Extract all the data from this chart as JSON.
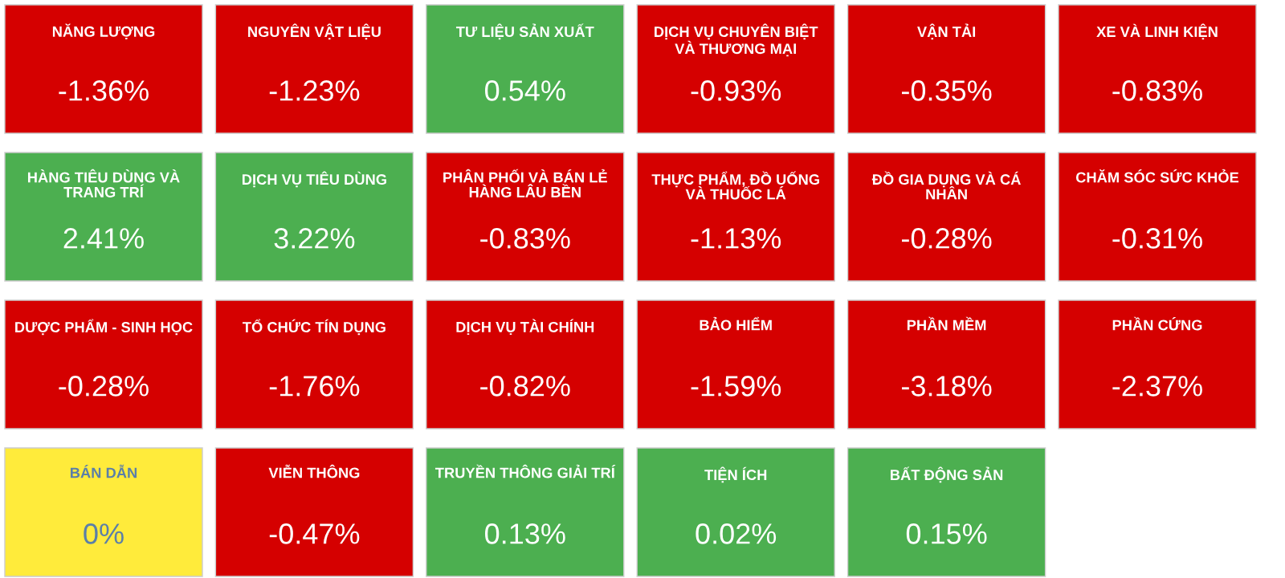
{
  "chart_data": {
    "type": "other",
    "categories": [
      "NĂNG LƯỢNG",
      "NGUYÊN VẬT LIỆU",
      "TƯ LIỆU SẢN XUẤT",
      "DỊCH VỤ CHUYÊN BIỆT VÀ THƯƠNG MẠI",
      "VẬN TẢI",
      "XE VÀ LINH KIỆN",
      "HÀNG TIÊU DÙNG VÀ TRANG TRÍ",
      "DỊCH VỤ TIÊU DÙNG",
      "PHÂN PHỐI VÀ BÁN LẺ HÀNG LÂU BỀN",
      "THỰC PHẨM, ĐỒ UỐNG VÀ THUỐC LÁ",
      "ĐỒ GIA DỤNG VÀ CÁ NHÂN",
      "CHĂM SÓC SỨC KHỎE",
      "DƯỢC PHẨM - SINH HỌC",
      "TỔ CHỨC TÍN DỤNG",
      "DỊCH VỤ TÀI CHÍNH",
      "BẢO HIỂM",
      "PHẦN MỀM",
      "PHẦN CỨNG",
      "BÁN DẪN",
      "VIỄN THÔNG",
      "TRUYỀN THÔNG GIẢI TRÍ",
      "TIỆN ÍCH",
      "BẤT ĐỘNG SẢN"
    ],
    "values": [
      -1.36,
      -1.23,
      0.54,
      -0.93,
      -0.35,
      -0.83,
      2.41,
      3.22,
      -0.83,
      -1.13,
      -0.28,
      -0.31,
      -0.28,
      -1.76,
      -0.82,
      -1.59,
      -3.18,
      -2.37,
      0,
      -0.47,
      0.13,
      0.02,
      0.15
    ],
    "value_labels": [
      "-1.36%",
      "-1.23%",
      "0.54%",
      "-0.93%",
      "-0.35%",
      "-0.83%",
      "2.41%",
      "3.22%",
      "-0.83%",
      "-1.13%",
      "-0.28%",
      "-0.31%",
      "-0.28%",
      "-1.76%",
      "-0.82%",
      "-1.59%",
      "-3.18%",
      "-2.37%",
      "0%",
      "-0.47%",
      "0.13%",
      "0.02%",
      "0.15%"
    ],
    "colors": [
      "#d50000",
      "#d50000",
      "#4caf50",
      "#d50000",
      "#d50000",
      "#d50000",
      "#4caf50",
      "#4caf50",
      "#d50000",
      "#d50000",
      "#d50000",
      "#d50000",
      "#d50000",
      "#d50000",
      "#d50000",
      "#d50000",
      "#d50000",
      "#d50000",
      "#ffeb3b",
      "#d50000",
      "#4caf50",
      "#4caf50",
      "#4caf50"
    ]
  }
}
